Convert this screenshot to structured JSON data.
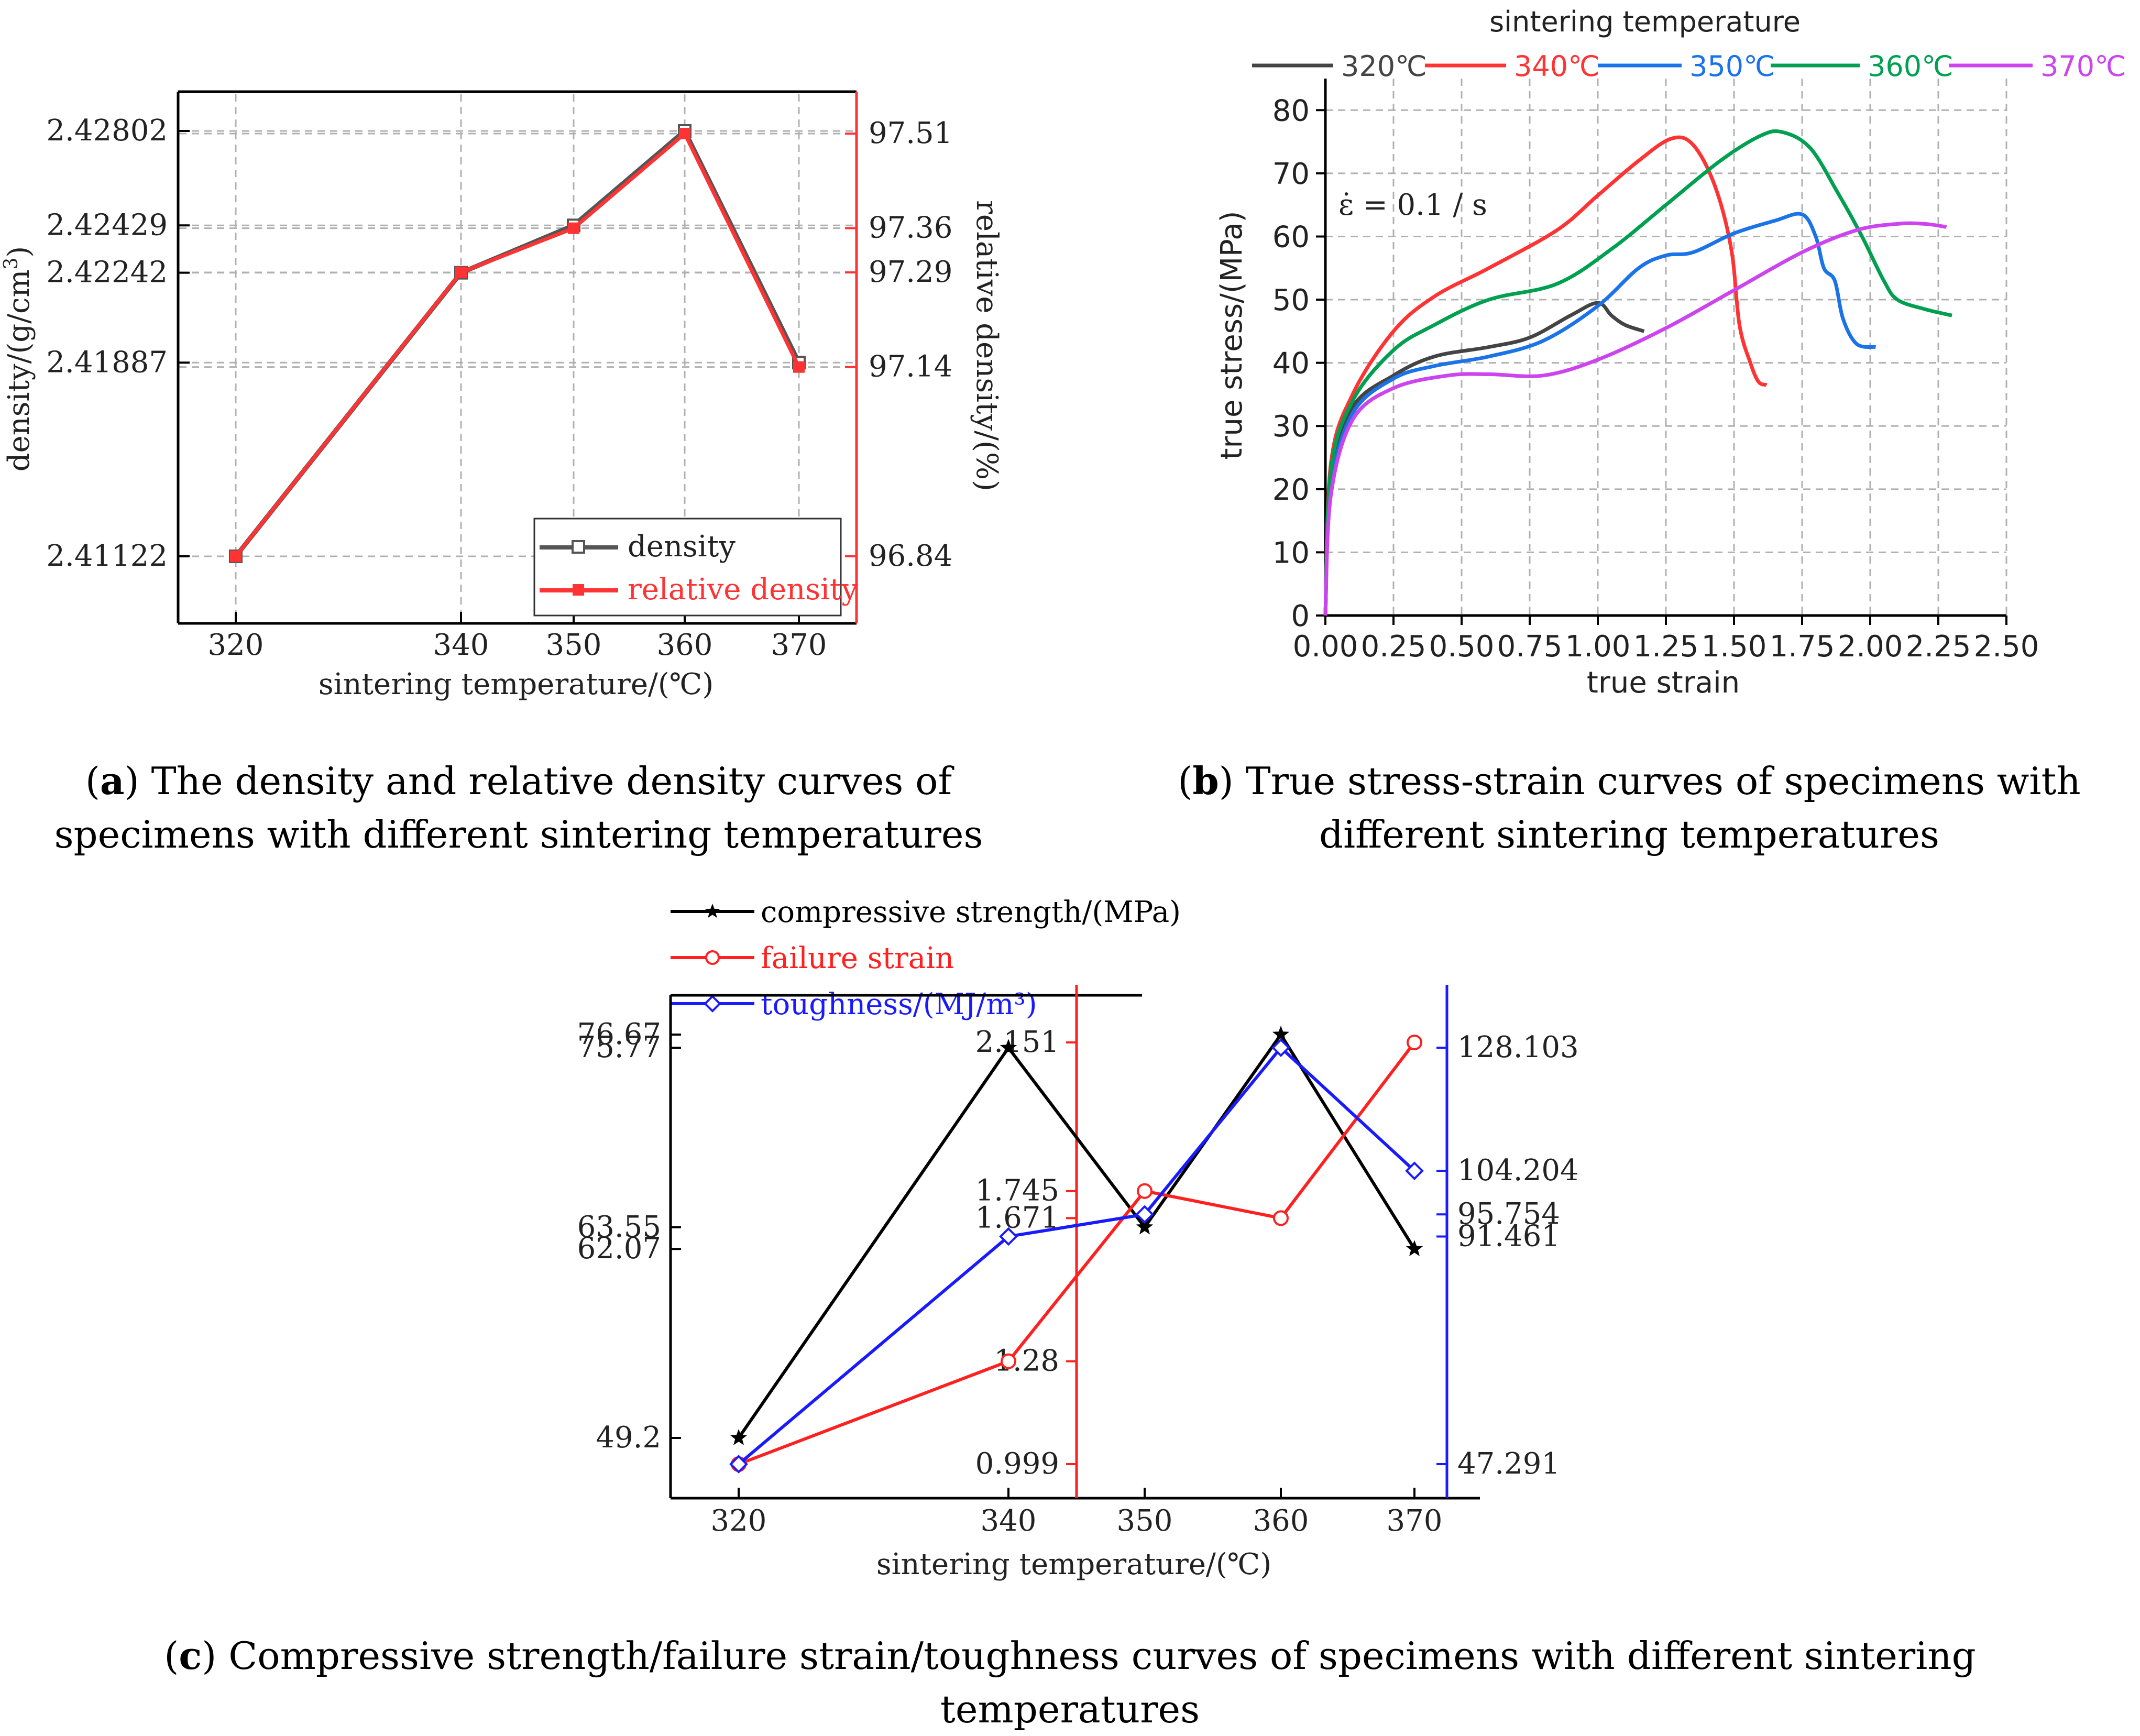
{
  "chart_data": [
    {
      "id": "a",
      "type": "line",
      "xlabel": "sintering temperature/(℃)",
      "ylabel_left": "density/(g/cm³)",
      "ylabel_right": "relative density/(%)",
      "x": [
        320,
        340,
        350,
        360,
        370
      ],
      "left_ticks": [
        "2.42802",
        "2.42429",
        "2.42242",
        "2.41887",
        "2.41122"
      ],
      "right_ticks": [
        "97.51",
        "97.36",
        "97.29",
        "97.14",
        "96.84"
      ],
      "series": [
        {
          "name": "density",
          "color": "#555555",
          "marker": "square-open",
          "values": [
            2.41122,
            2.42242,
            2.42429,
            2.42802,
            2.41887
          ]
        },
        {
          "name": "relative density",
          "color": "#ff3333",
          "marker": "square",
          "values": [
            96.84,
            97.29,
            97.36,
            97.51,
            97.14
          ]
        }
      ],
      "legend": [
        "density",
        "relative density"
      ],
      "caption_label": "a",
      "caption_text": "The density and relative density curves of specimens with different sintering temperatures"
    },
    {
      "id": "b",
      "type": "line",
      "xlabel": "true strain",
      "ylabel": "true stress/(MPa)",
      "legend_title": "sintering temperature",
      "annotation": "ε̇ = 0.1 / s",
      "xlim": [
        0,
        2.5
      ],
      "ylim": [
        0,
        85
      ],
      "x_ticks": [
        "0.00",
        "0.25",
        "0.50",
        "0.75",
        "1.00",
        "1.25",
        "1.50",
        "1.75",
        "2.00",
        "2.25",
        "2.50"
      ],
      "y_ticks": [
        "0",
        "10",
        "20",
        "30",
        "40",
        "50",
        "60",
        "70",
        "80"
      ],
      "series": [
        {
          "name": "320℃",
          "color": "#444444",
          "points": [
            [
              0,
              0
            ],
            [
              0.02,
              22
            ],
            [
              0.1,
              33
            ],
            [
              0.25,
              38
            ],
            [
              0.4,
              41
            ],
            [
              0.6,
              42.5
            ],
            [
              0.75,
              44
            ],
            [
              0.9,
              47.5
            ],
            [
              1.0,
              49.5
            ],
            [
              1.05,
              47.5
            ],
            [
              1.1,
              46
            ],
            [
              1.17,
              45
            ]
          ]
        },
        {
          "name": "340℃",
          "color": "#ff3333",
          "points": [
            [
              0,
              0
            ],
            [
              0.02,
              24
            ],
            [
              0.1,
              35
            ],
            [
              0.25,
              45
            ],
            [
              0.4,
              50.5
            ],
            [
              0.6,
              55
            ],
            [
              0.85,
              61
            ],
            [
              1.0,
              66.5
            ],
            [
              1.15,
              72
            ],
            [
              1.27,
              75.5
            ],
            [
              1.35,
              74.5
            ],
            [
              1.43,
              68
            ],
            [
              1.49,
              58
            ],
            [
              1.52,
              46
            ],
            [
              1.56,
              40
            ],
            [
              1.59,
              37
            ],
            [
              1.62,
              36.5
            ]
          ]
        },
        {
          "name": "350℃",
          "color": "#1a73e8",
          "points": [
            [
              0,
              0
            ],
            [
              0.02,
              20
            ],
            [
              0.1,
              32
            ],
            [
              0.25,
              37.5
            ],
            [
              0.4,
              39.5
            ],
            [
              0.6,
              41
            ],
            [
              0.8,
              43.5
            ],
            [
              1.0,
              49
            ],
            [
              1.15,
              55
            ],
            [
              1.25,
              57
            ],
            [
              1.35,
              57.5
            ],
            [
              1.5,
              60.5
            ],
            [
              1.65,
              62.5
            ],
            [
              1.75,
              63.5
            ],
            [
              1.8,
              60
            ],
            [
              1.83,
              55
            ],
            [
              1.87,
              53
            ],
            [
              1.9,
              47
            ],
            [
              1.95,
              43
            ],
            [
              2.02,
              42.5
            ]
          ]
        },
        {
          "name": "360℃",
          "color": "#00a050",
          "points": [
            [
              0,
              0
            ],
            [
              0.02,
              23
            ],
            [
              0.1,
              34
            ],
            [
              0.25,
              42
            ],
            [
              0.4,
              46
            ],
            [
              0.6,
              50
            ],
            [
              0.85,
              52.5
            ],
            [
              1.05,
              58
            ],
            [
              1.25,
              65
            ],
            [
              1.45,
              72
            ],
            [
              1.6,
              76
            ],
            [
              1.68,
              76.5
            ],
            [
              1.78,
              74
            ],
            [
              1.88,
              67
            ],
            [
              1.97,
              60
            ],
            [
              2.05,
              53
            ],
            [
              2.1,
              50
            ],
            [
              2.2,
              48.5
            ],
            [
              2.3,
              47.5
            ]
          ]
        },
        {
          "name": "370℃",
          "color": "#cc44ee",
          "points": [
            [
              0,
              0
            ],
            [
              0.02,
              19
            ],
            [
              0.1,
              31
            ],
            [
              0.25,
              36
            ],
            [
              0.45,
              38
            ],
            [
              0.6,
              38.2
            ],
            [
              0.8,
              38
            ],
            [
              1.0,
              40.5
            ],
            [
              1.25,
              45.5
            ],
            [
              1.5,
              51.5
            ],
            [
              1.75,
              57.5
            ],
            [
              1.95,
              61
            ],
            [
              2.1,
              62
            ],
            [
              2.2,
              62
            ],
            [
              2.28,
              61.5
            ]
          ]
        }
      ],
      "caption_label": "b",
      "caption_text": "True stress-strain curves of specimens with different sintering temperatures"
    },
    {
      "id": "c",
      "type": "line",
      "xlabel": "sintering temperature/(℃)",
      "x": [
        320,
        340,
        350,
        360,
        370
      ],
      "left_ticks": [
        "76.67",
        "75.77",
        "63.55",
        "62.07",
        "49.2"
      ],
      "red_ticks": [
        "2.151",
        "1.745",
        "1.671",
        "1.28",
        "0.999"
      ],
      "blue_ticks": [
        "128.103",
        "104.204",
        "95.754",
        "91.461",
        "47.291"
      ],
      "series": [
        {
          "name": "compressive strength/(MPa)",
          "color": "#000000",
          "marker": "star",
          "values": [
            49.2,
            75.77,
            63.55,
            76.67,
            62.07
          ]
        },
        {
          "name": "failure strain",
          "color": "#ff2020",
          "marker": "circle-open",
          "values": [
            0.999,
            1.28,
            1.745,
            1.671,
            2.151
          ]
        },
        {
          "name": "toughness/(MJ/m³)",
          "color": "#1a1aff",
          "marker": "diamond-open",
          "values": [
            47.291,
            91.461,
            95.754,
            128.103,
            104.204
          ]
        }
      ],
      "caption_label": "c",
      "caption_text": "Compressive strength/failure strain/toughness curves of specimens with different sintering temperatures"
    }
  ]
}
